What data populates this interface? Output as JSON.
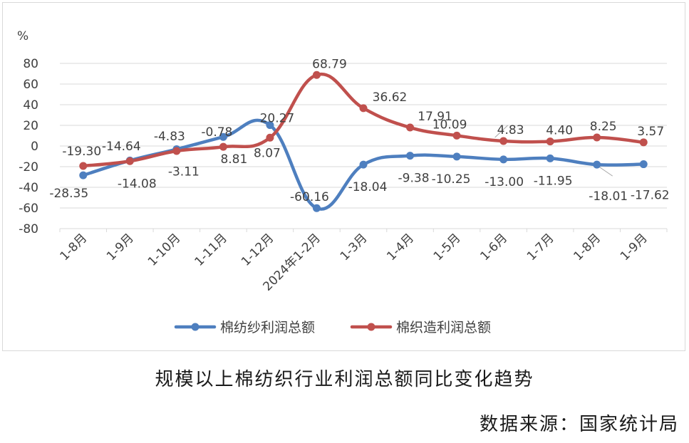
{
  "chart_data": {
    "type": "line",
    "ylabel": "%",
    "ylim": [
      -80,
      80
    ],
    "yticks": [
      80,
      60,
      40,
      20,
      0,
      -20,
      -40,
      -60,
      -80
    ],
    "grid": true,
    "legend_position": "bottom",
    "categories": [
      "1-8月",
      "1-9月",
      "1-10月",
      "1-11月",
      "1-12月",
      "2024年1-2月",
      "1-3月",
      "1-4月",
      "1-5月",
      "1-6月",
      "1-7月",
      "1-8月",
      "1-9月"
    ],
    "series": [
      {
        "name": "棉纺纱利润总额",
        "color": "#4e7fbf",
        "values": [
          -28.35,
          -14.08,
          -3.11,
          8.81,
          20.27,
          -60.16,
          -18.04,
          -9.38,
          -10.25,
          -13.0,
          -11.95,
          -18.01,
          -17.62
        ],
        "labels": [
          "-28.35",
          "-14.08",
          "-3.11",
          "8.81",
          "20.27",
          "-60.16",
          "-18.04",
          "-9.38",
          "-10.25",
          "-13.00",
          "-11.95",
          "-18.01",
          "-17.62"
        ]
      },
      {
        "name": "棉织造利润总额",
        "color": "#c0504d",
        "values": [
          -19.3,
          -14.64,
          -4.83,
          -0.78,
          8.07,
          68.79,
          36.62,
          17.91,
          10.09,
          4.83,
          4.4,
          8.25,
          3.57
        ],
        "labels": [
          "-19.30",
          "-14.64",
          "-4.83",
          "-0.78",
          "8.07",
          "68.79",
          "36.62",
          "17.91",
          "10.09",
          "4.83",
          "4.40",
          "8.25",
          "3.57"
        ]
      }
    ]
  },
  "caption": "规模以上棉纺织行业利润总额同比变化趋势",
  "source": "数据来源：国家统计局"
}
